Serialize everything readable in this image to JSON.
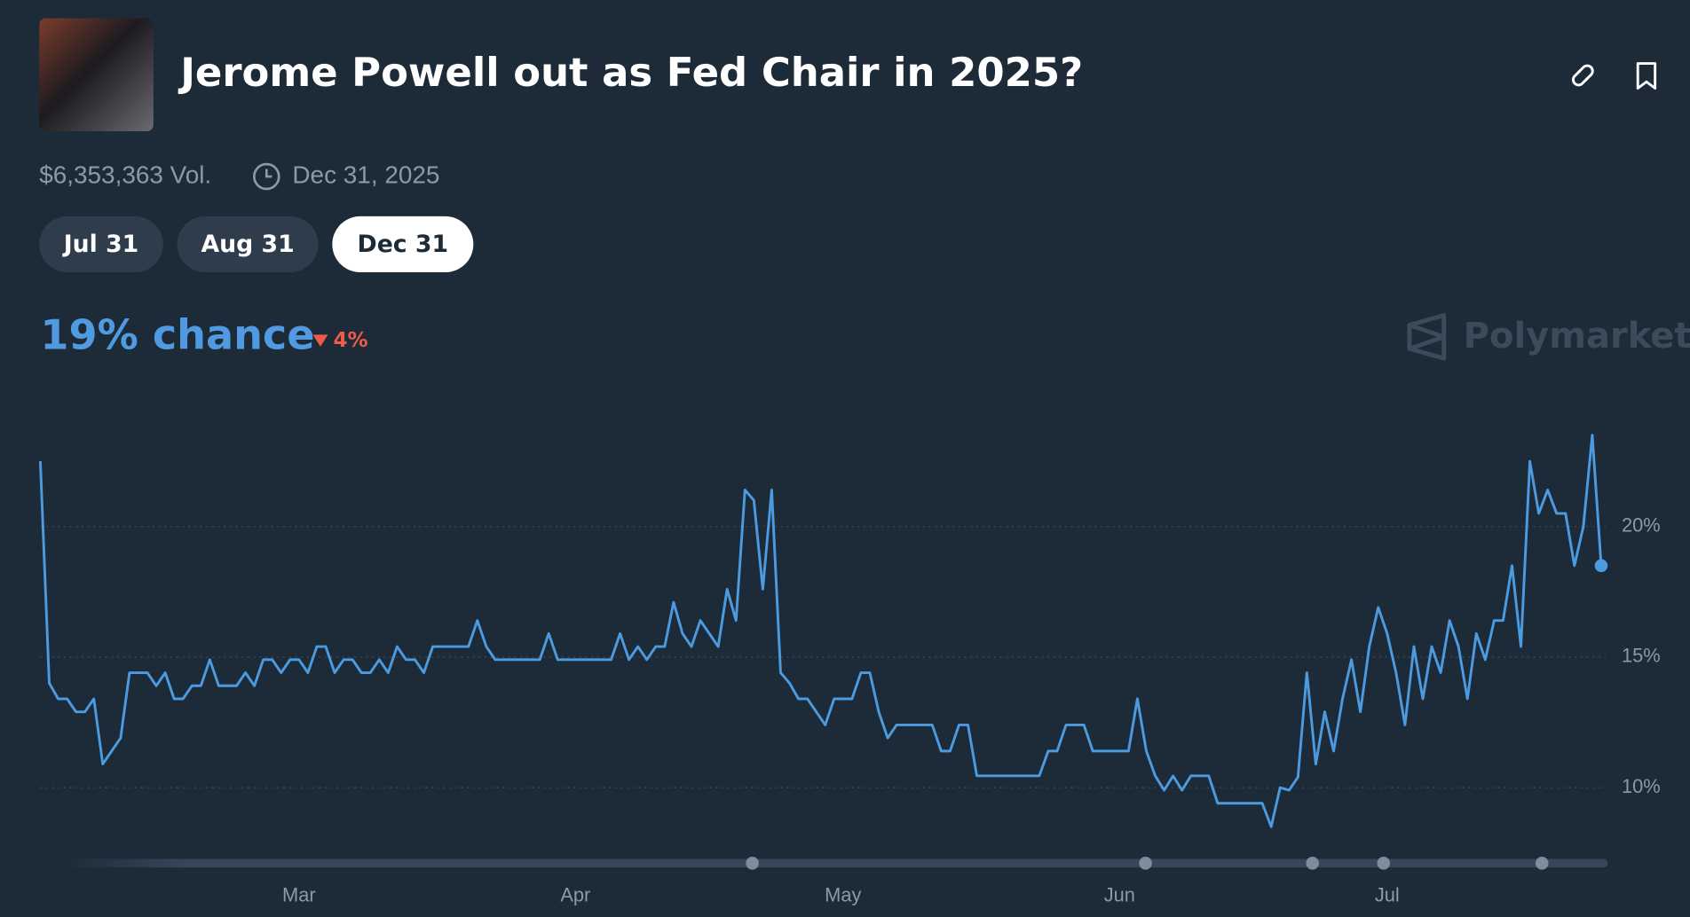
{
  "header": {
    "title": "Jerome Powell out as Fed Chair in 2025?",
    "volume": "$6,353,363 Vol.",
    "end_date": "Dec 31, 2025"
  },
  "tabs": [
    "Jul 31",
    "Aug 31",
    "Dec 31"
  ],
  "chance": "19% chance",
  "change": "4%",
  "brand": "Polymarket",
  "chart_data": {
    "type": "line",
    "color": "#4c9be0",
    "categories": [
      null,
      null,
      null,
      null,
      null,
      null,
      null,
      null,
      null,
      null,
      null,
      null,
      null,
      null,
      null,
      null,
      null,
      null,
      null,
      null,
      null,
      null,
      null,
      null,
      null,
      null,
      null,
      null,
      null,
      "Mar",
      null,
      null,
      null,
      null,
      null,
      null,
      null,
      null,
      null,
      null,
      null,
      null,
      null,
      null,
      null,
      null,
      null,
      null,
      null,
      null,
      null,
      null,
      null,
      null,
      null,
      null,
      null,
      null,
      null,
      null,
      "Apr",
      null,
      null,
      null,
      null,
      null,
      null,
      null,
      null,
      null,
      null,
      null,
      null,
      null,
      null,
      null,
      null,
      null,
      null,
      null,
      null,
      null,
      null,
      null,
      null,
      null,
      null,
      null,
      null,
      null,
      "May",
      null,
      null,
      null,
      null,
      null,
      null,
      null,
      null,
      null,
      null,
      null,
      null,
      null,
      null,
      null,
      null,
      null,
      null,
      null,
      null,
      null,
      null,
      null,
      null,
      null,
      null,
      null,
      null,
      null,
      null,
      "Jun",
      null,
      null,
      null,
      null,
      null,
      null,
      null,
      null,
      null,
      null,
      null,
      null,
      null,
      null,
      null,
      null,
      null,
      null,
      null,
      null,
      null,
      null,
      null,
      null,
      null,
      null,
      null,
      null,
      null,
      "Jul",
      null,
      null,
      null,
      null,
      null,
      null,
      null,
      null,
      null,
      null,
      null,
      null,
      null,
      null,
      null,
      null,
      null,
      null,
      null,
      null,
      null,
      null,
      null,
      null
    ],
    "values": [
      22.5,
      14.0,
      13.4,
      13.4,
      12.9,
      12.9,
      13.4,
      10.9,
      11.4,
      11.9,
      14.4,
      14.4,
      14.4,
      13.9,
      14.4,
      13.4,
      13.4,
      13.9,
      13.9,
      14.9,
      13.9,
      13.9,
      13.9,
      14.4,
      13.9,
      14.9,
      14.9,
      14.4,
      14.9,
      14.9,
      14.4,
      15.4,
      15.4,
      14.4,
      14.9,
      14.9,
      14.4,
      14.4,
      14.9,
      14.4,
      15.4,
      14.9,
      14.9,
      14.4,
      15.4,
      15.4,
      15.4,
      15.4,
      15.4,
      16.4,
      15.4,
      14.9,
      14.9,
      14.9,
      14.9,
      14.9,
      14.9,
      15.9,
      14.9,
      14.9,
      14.9,
      14.9,
      14.9,
      14.9,
      14.9,
      15.9,
      14.9,
      15.4,
      14.9,
      15.4,
      15.4,
      17.1,
      15.9,
      15.4,
      16.4,
      15.9,
      15.4,
      17.6,
      16.4,
      21.4,
      21.0,
      17.6,
      21.4,
      14.4,
      14.0,
      13.4,
      13.4,
      12.9,
      12.4,
      13.4,
      13.4,
      13.4,
      14.4,
      14.4,
      12.9,
      11.9,
      12.4,
      12.4,
      12.4,
      12.4,
      12.4,
      11.4,
      11.4,
      12.4,
      12.4,
      10.45,
      10.45,
      10.45,
      10.45,
      10.45,
      10.45,
      10.45,
      10.45,
      11.4,
      11.4,
      12.4,
      12.4,
      12.4,
      11.4,
      11.4,
      11.4,
      11.4,
      11.4,
      13.4,
      11.4,
      10.45,
      9.9,
      10.45,
      9.9,
      10.45,
      10.45,
      10.45,
      9.4,
      9.4,
      9.4,
      9.4,
      9.4,
      9.4,
      8.5,
      10.0,
      9.9,
      10.4,
      14.4,
      10.9,
      12.9,
      11.4,
      13.4,
      14.9,
      12.9,
      15.4,
      16.9,
      15.9,
      14.4,
      12.4,
      15.4,
      13.4,
      15.4,
      14.4,
      16.4,
      15.4,
      13.4,
      15.9,
      14.9,
      16.4,
      16.4,
      18.5,
      15.4,
      22.5,
      20.5,
      21.4,
      20.5,
      20.5,
      18.5,
      20.0,
      23.5,
      18.5
    ],
    "ylim": [
      7.6,
      24.5
    ],
    "yticks": [
      {
        "value": 10,
        "label": "10%"
      },
      {
        "value": 15,
        "label": "15%"
      },
      {
        "value": 20,
        "label": "20%"
      }
    ],
    "grid": true
  }
}
